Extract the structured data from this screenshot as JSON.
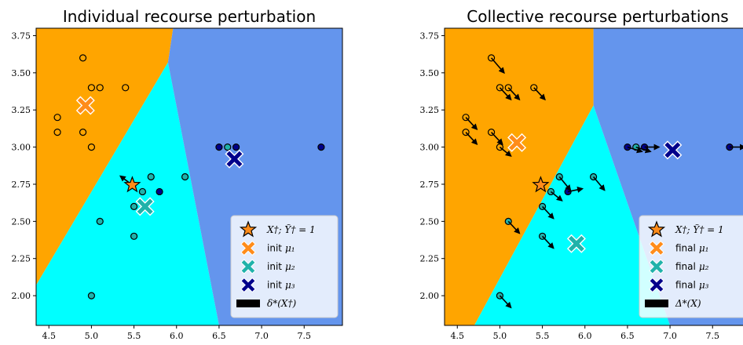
{
  "chart_data": [
    {
      "type": "scatter",
      "title": "Individual recourse perturbation",
      "xlim": [
        4.35,
        7.95
      ],
      "ylim": [
        1.8,
        3.8
      ],
      "xticks": [
        "4.5",
        "5.0",
        "5.5",
        "6.0",
        "6.5",
        "7.0",
        "7.5"
      ],
      "yticks": [
        "2.00",
        "2.25",
        "2.50",
        "2.75",
        "3.00",
        "3.25",
        "3.50",
        "3.75"
      ],
      "regions": [
        {
          "color": "#ffa500",
          "polygon": [
            [
              4.35,
              3.8
            ],
            [
              5.96,
              3.8
            ],
            [
              5.9,
              3.57
            ],
            [
              4.35,
              2.07
            ]
          ]
        },
        {
          "color": "#00ffff",
          "polygon": [
            [
              5.9,
              3.57
            ],
            [
              6.5,
              1.8
            ],
            [
              4.35,
              1.8
            ],
            [
              4.35,
              2.07
            ]
          ]
        },
        {
          "color": "#6495ed",
          "polygon": [
            [
              5.96,
              3.8
            ],
            [
              7.95,
              3.8
            ],
            [
              7.95,
              1.8
            ],
            [
              6.5,
              1.8
            ],
            [
              5.9,
              3.57
            ]
          ]
        }
      ],
      "points": [
        {
          "x": 4.9,
          "y": 3.6,
          "color": "#ffa500"
        },
        {
          "x": 5.0,
          "y": 3.4,
          "color": "#ffa500"
        },
        {
          "x": 5.1,
          "y": 3.4,
          "color": "#ffa500"
        },
        {
          "x": 5.4,
          "y": 3.4,
          "color": "#ffa500"
        },
        {
          "x": 4.6,
          "y": 3.2,
          "color": "#ffa500"
        },
        {
          "x": 4.6,
          "y": 3.1,
          "color": "#ffa500"
        },
        {
          "x": 4.9,
          "y": 3.1,
          "color": "#ffa500"
        },
        {
          "x": 5.0,
          "y": 3.0,
          "color": "#ffa500"
        },
        {
          "x": 5.7,
          "y": 2.8,
          "color": "#20b2aa"
        },
        {
          "x": 6.1,
          "y": 2.8,
          "color": "#20b2aa"
        },
        {
          "x": 5.6,
          "y": 2.7,
          "color": "#20b2aa"
        },
        {
          "x": 5.8,
          "y": 2.7,
          "color": "#00008b"
        },
        {
          "x": 5.5,
          "y": 2.6,
          "color": "#20b2aa"
        },
        {
          "x": 5.1,
          "y": 2.5,
          "color": "#20b2aa"
        },
        {
          "x": 5.5,
          "y": 2.4,
          "color": "#20b2aa"
        },
        {
          "x": 5.0,
          "y": 2.0,
          "color": "#20b2aa"
        },
        {
          "x": 6.5,
          "y": 3.0,
          "color": "#00008b"
        },
        {
          "x": 6.6,
          "y": 3.0,
          "color": "#20b2aa"
        },
        {
          "x": 6.7,
          "y": 3.0,
          "color": "#00008b"
        },
        {
          "x": 7.7,
          "y": 3.0,
          "color": "#00008b"
        }
      ],
      "star": {
        "x": 5.48,
        "y": 2.745
      },
      "centroids": [
        {
          "x": 4.93,
          "y": 3.28,
          "color": "#ff8c1a"
        },
        {
          "x": 5.63,
          "y": 2.6,
          "color": "#20b2aa"
        },
        {
          "x": 6.68,
          "y": 2.92,
          "color": "#00008b"
        }
      ],
      "arrows": [
        {
          "from": [
            5.48,
            2.745
          ],
          "to": [
            5.34,
            2.805
          ]
        }
      ],
      "legend": {
        "items": [
          {
            "kind": "star",
            "text": "X†; Ỹ† = 1",
            "math": true
          },
          {
            "kind": "cross",
            "color": "#ff8c1a",
            "text": "init",
            "sym": "μ₁"
          },
          {
            "kind": "cross",
            "color": "#20b2aa",
            "text": "init",
            "sym": "μ₂"
          },
          {
            "kind": "cross",
            "color": "#00008b",
            "text": "init",
            "sym": "μ₃"
          },
          {
            "kind": "bar",
            "text": "δ*(X†)",
            "math": true
          }
        ]
      }
    },
    {
      "type": "scatter",
      "title": "Collective recourse perturbations",
      "xlim": [
        4.35,
        7.95
      ],
      "ylim": [
        1.8,
        3.8
      ],
      "xticks": [
        "4.5",
        "5.0",
        "5.5",
        "6.0",
        "6.5",
        "7.0",
        "7.5"
      ],
      "yticks": [
        "2.00",
        "2.25",
        "2.50",
        "2.75",
        "3.00",
        "3.25",
        "3.50",
        "3.75"
      ],
      "regions": [
        {
          "color": "#ffa500",
          "polygon": [
            [
              4.35,
              3.8
            ],
            [
              6.1,
              3.8
            ],
            [
              6.1,
              3.28
            ],
            [
              4.7,
              1.8
            ],
            [
              4.35,
              1.8
            ]
          ]
        },
        {
          "color": "#00ffff",
          "polygon": [
            [
              6.1,
              3.28
            ],
            [
              7.0,
              1.8
            ],
            [
              4.7,
              1.8
            ]
          ]
        },
        {
          "color": "#6495ed",
          "polygon": [
            [
              6.1,
              3.8
            ],
            [
              7.95,
              3.8
            ],
            [
              7.95,
              1.8
            ],
            [
              7.0,
              1.8
            ],
            [
              6.1,
              3.28
            ]
          ]
        }
      ],
      "points": [
        {
          "x": 4.9,
          "y": 3.6,
          "color": "#ffa500"
        },
        {
          "x": 5.0,
          "y": 3.4,
          "color": "#ffa500"
        },
        {
          "x": 5.1,
          "y": 3.4,
          "color": "#ffa500"
        },
        {
          "x": 5.4,
          "y": 3.4,
          "color": "#ffa500"
        },
        {
          "x": 4.6,
          "y": 3.2,
          "color": "#ffa500"
        },
        {
          "x": 4.6,
          "y": 3.1,
          "color": "#ffa500"
        },
        {
          "x": 4.9,
          "y": 3.1,
          "color": "#ffa500"
        },
        {
          "x": 5.0,
          "y": 3.0,
          "color": "#ffa500"
        },
        {
          "x": 5.7,
          "y": 2.8,
          "color": "#20b2aa"
        },
        {
          "x": 6.1,
          "y": 2.8,
          "color": "#20b2aa"
        },
        {
          "x": 5.6,
          "y": 2.7,
          "color": "#20b2aa"
        },
        {
          "x": 5.8,
          "y": 2.7,
          "color": "#00008b"
        },
        {
          "x": 5.5,
          "y": 2.6,
          "color": "#20b2aa"
        },
        {
          "x": 5.1,
          "y": 2.5,
          "color": "#20b2aa"
        },
        {
          "x": 5.5,
          "y": 2.4,
          "color": "#20b2aa"
        },
        {
          "x": 5.0,
          "y": 2.0,
          "color": "#20b2aa"
        },
        {
          "x": 6.5,
          "y": 3.0,
          "color": "#00008b"
        },
        {
          "x": 6.6,
          "y": 3.0,
          "color": "#20b2aa"
        },
        {
          "x": 6.7,
          "y": 3.0,
          "color": "#00008b"
        },
        {
          "x": 7.7,
          "y": 3.0,
          "color": "#00008b"
        }
      ],
      "star": {
        "x": 5.48,
        "y": 2.745
      },
      "centroids": [
        {
          "x": 5.2,
          "y": 3.03,
          "color": "#ff8c1a"
        },
        {
          "x": 5.9,
          "y": 2.35,
          "color": "#20b2aa"
        },
        {
          "x": 7.03,
          "y": 2.98,
          "color": "#00008b"
        }
      ],
      "arrows": [
        {
          "from": [
            4.9,
            3.6
          ],
          "to": [
            5.05,
            3.5
          ]
        },
        {
          "from": [
            5.0,
            3.4
          ],
          "to": [
            5.13,
            3.32
          ]
        },
        {
          "from": [
            5.1,
            3.4
          ],
          "to": [
            5.23,
            3.32
          ]
        },
        {
          "from": [
            5.4,
            3.4
          ],
          "to": [
            5.53,
            3.32
          ]
        },
        {
          "from": [
            4.6,
            3.2
          ],
          "to": [
            4.73,
            3.12
          ]
        },
        {
          "from": [
            4.6,
            3.1
          ],
          "to": [
            4.73,
            3.02
          ]
        },
        {
          "from": [
            4.9,
            3.1
          ],
          "to": [
            5.03,
            3.02
          ]
        },
        {
          "from": [
            5.0,
            3.0
          ],
          "to": [
            5.13,
            2.94
          ]
        },
        {
          "from": [
            5.7,
            2.8
          ],
          "to": [
            5.83,
            2.71
          ]
        },
        {
          "from": [
            6.1,
            2.8
          ],
          "to": [
            6.23,
            2.71
          ]
        },
        {
          "from": [
            5.6,
            2.7
          ],
          "to": [
            5.73,
            2.64
          ]
        },
        {
          "from": [
            5.8,
            2.7
          ],
          "to": [
            5.97,
            2.72
          ]
        },
        {
          "from": [
            5.5,
            2.6
          ],
          "to": [
            5.63,
            2.52
          ]
        },
        {
          "from": [
            5.1,
            2.5
          ],
          "to": [
            5.23,
            2.42
          ]
        },
        {
          "from": [
            5.5,
            2.4
          ],
          "to": [
            5.63,
            2.32
          ]
        },
        {
          "from": [
            5.0,
            2.0
          ],
          "to": [
            5.13,
            1.92
          ]
        },
        {
          "from": [
            6.5,
            3.0
          ],
          "to": [
            6.67,
            2.97
          ]
        },
        {
          "from": [
            6.6,
            3.0
          ],
          "to": [
            6.77,
            2.97
          ]
        },
        {
          "from": [
            6.7,
            3.0
          ],
          "to": [
            6.87,
            3.0
          ]
        },
        {
          "from": [
            7.7,
            3.0
          ],
          "to": [
            7.88,
            3.0
          ]
        }
      ],
      "legend": {
        "items": [
          {
            "kind": "star",
            "text": "X†; Ỹ† = 1",
            "math": true
          },
          {
            "kind": "cross",
            "color": "#ff8c1a",
            "text": "final",
            "sym": "μ₁"
          },
          {
            "kind": "cross",
            "color": "#20b2aa",
            "text": "final",
            "sym": "μ₂"
          },
          {
            "kind": "cross",
            "color": "#00008b",
            "text": "final",
            "sym": "μ₃"
          },
          {
            "kind": "bar",
            "text": "Δ*(X)",
            "math": true
          }
        ]
      }
    }
  ]
}
